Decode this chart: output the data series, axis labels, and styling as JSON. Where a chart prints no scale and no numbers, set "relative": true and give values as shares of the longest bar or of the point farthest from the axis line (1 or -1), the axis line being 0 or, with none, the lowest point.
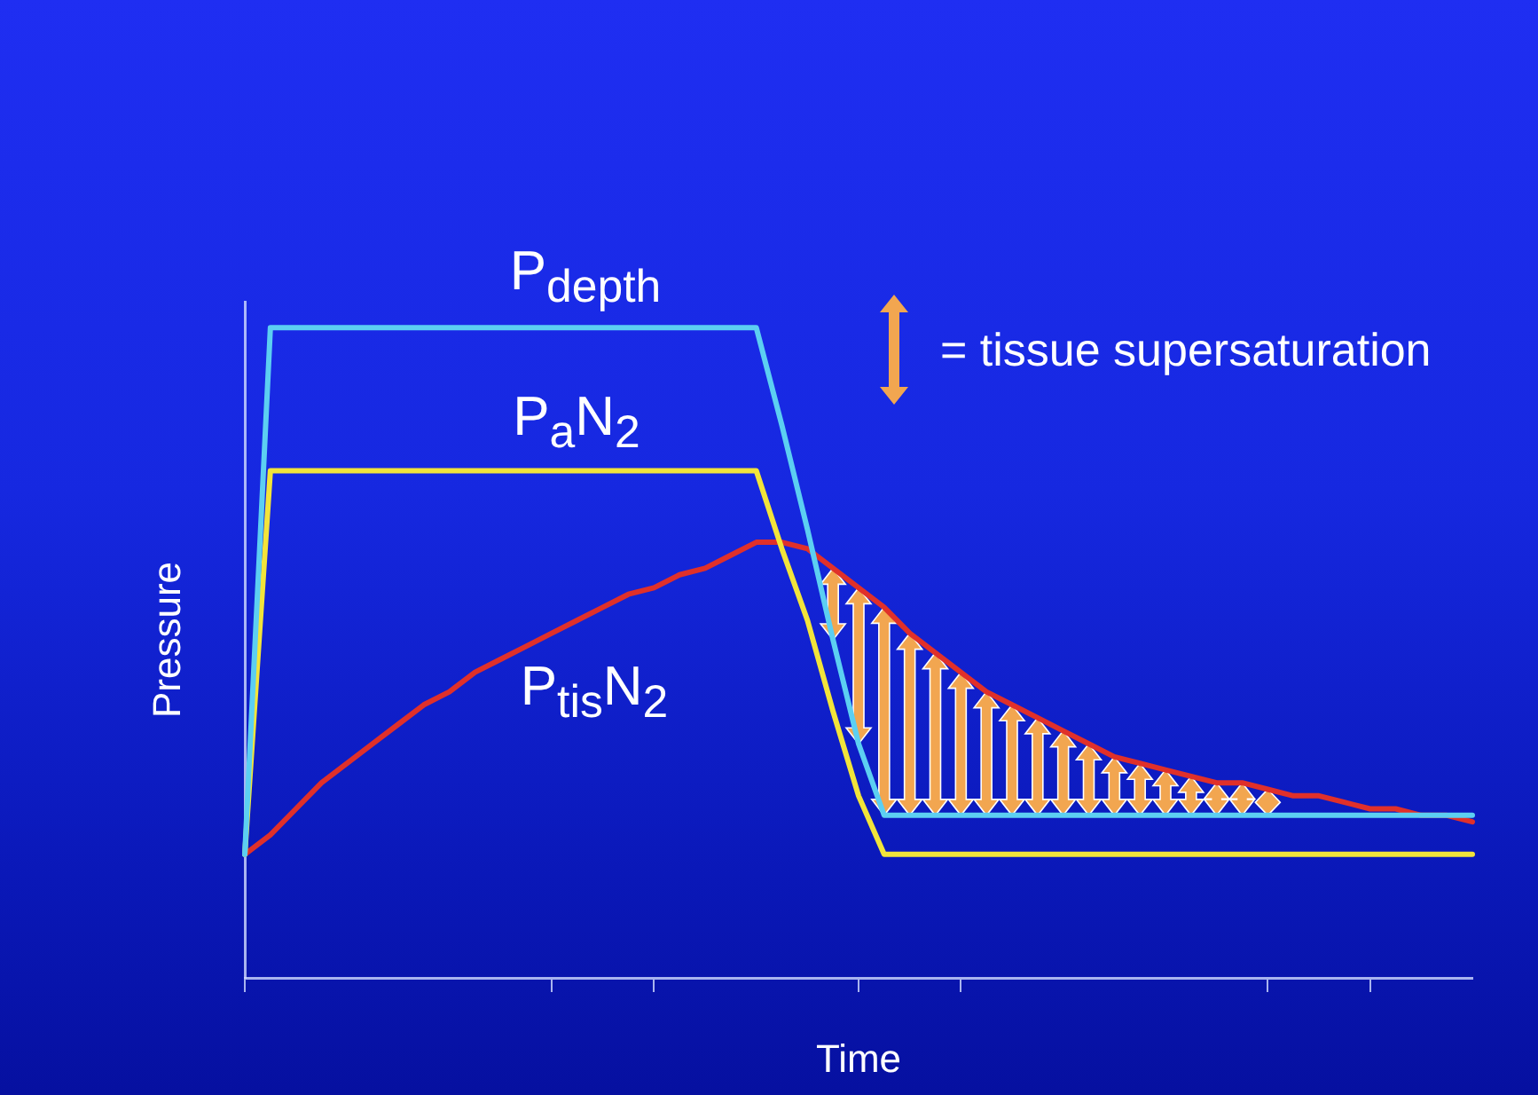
{
  "chart_data": {
    "type": "line",
    "xlabel": "Time",
    "ylabel": "Pressure",
    "relative": true,
    "marker": "none",
    "line_style": "solid",
    "categories": [
      null,
      null,
      null,
      null,
      null,
      null,
      null,
      null,
      null,
      null,
      null,
      null,
      null,
      null,
      null,
      null,
      null,
      null,
      null,
      null,
      null,
      null,
      null,
      null,
      null,
      null,
      null,
      null,
      null,
      null,
      null,
      null,
      null,
      null,
      null,
      null,
      null,
      null,
      null,
      null,
      null,
      null,
      null,
      null,
      null,
      null,
      null,
      null,
      null
    ],
    "series": [
      {
        "name": "P$_{depth}$",
        "color": "#5ccff2",
        "values": [
          0.19,
          1,
          1,
          1,
          1,
          1,
          1,
          1,
          1,
          1,
          1,
          1,
          1,
          1,
          1,
          1,
          1,
          1,
          1,
          1,
          1,
          0.85,
          0.69,
          0.52,
          0.36,
          0.25,
          0.25,
          0.25,
          0.25,
          0.25,
          0.25,
          0.25,
          0.25,
          0.25,
          0.25,
          0.25,
          0.25,
          0.25,
          0.25,
          0.25,
          0.25,
          0.25,
          0.25,
          0.25,
          0.25,
          0.25,
          0.25,
          0.25,
          0.25
        ]
      },
      {
        "name": "P$_{a}$N$_{2}$",
        "color": "#f2e43a",
        "values": [
          0.19,
          0.78,
          0.78,
          0.78,
          0.78,
          0.78,
          0.78,
          0.78,
          0.78,
          0.78,
          0.78,
          0.78,
          0.78,
          0.78,
          0.78,
          0.78,
          0.78,
          0.78,
          0.78,
          0.78,
          0.78,
          0.66,
          0.55,
          0.41,
          0.28,
          0.19,
          0.19,
          0.19,
          0.19,
          0.19,
          0.19,
          0.19,
          0.19,
          0.19,
          0.19,
          0.19,
          0.19,
          0.19,
          0.19,
          0.19,
          0.19,
          0.19,
          0.19,
          0.19,
          0.19,
          0.19,
          0.19,
          0.19,
          0.19
        ]
      },
      {
        "name": "P$_{tis}$N$_{2}$",
        "color": "#e0302a",
        "values": [
          0.19,
          0.22,
          0.26,
          0.3,
          0.33,
          0.36,
          0.39,
          0.42,
          0.44,
          0.47,
          0.49,
          0.51,
          0.53,
          0.55,
          0.57,
          0.59,
          0.6,
          0.62,
          0.63,
          0.65,
          0.67,
          0.67,
          0.66,
          0.63,
          0.6,
          0.57,
          0.53,
          0.5,
          0.47,
          0.44,
          0.42,
          0.4,
          0.38,
          0.36,
          0.34,
          0.33,
          0.32,
          0.31,
          0.3,
          0.3,
          0.29,
          0.28,
          0.28,
          0.27,
          0.26,
          0.26,
          0.25,
          0.25,
          0.24
        ]
      }
    ],
    "annotations": [
      "= tissue supersaturation"
    ]
  }
}
